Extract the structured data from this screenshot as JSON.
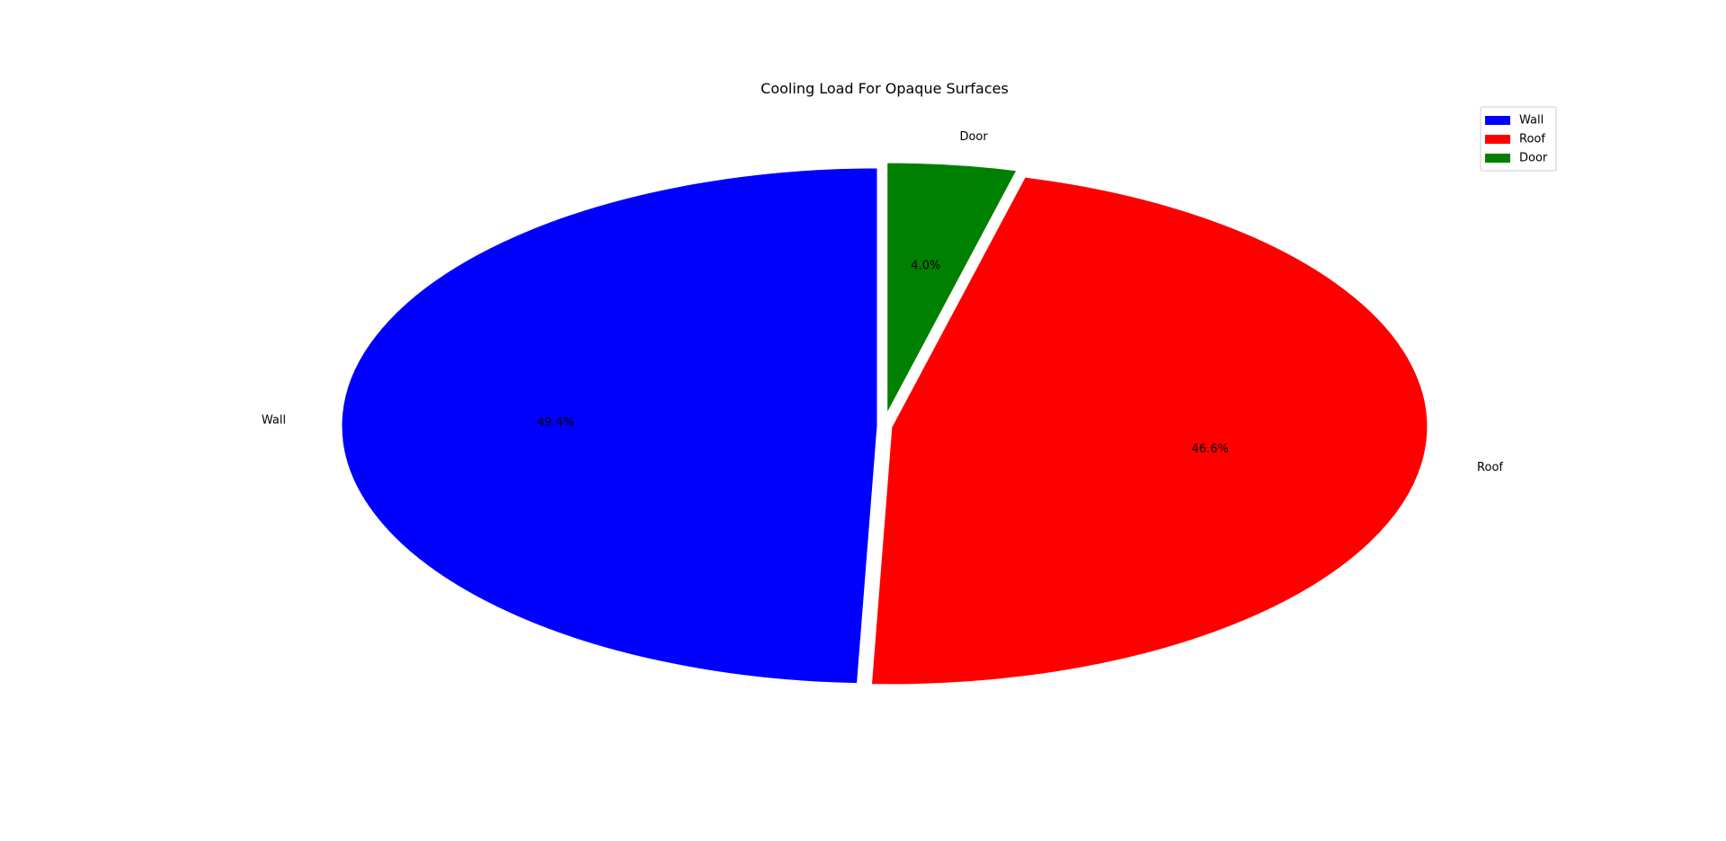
{
  "chart_data": {
    "type": "pie",
    "title": "Cooling  Load For Opaque Surfaces",
    "legend_position": "top-right",
    "start_angle_deg": 90,
    "direction": "counterclockwise",
    "slices": [
      {
        "label": "Wall",
        "value": 49.4,
        "pct_label": "49.4%",
        "color": "#0000ff"
      },
      {
        "label": "Roof",
        "value": 46.6,
        "pct_label": "46.6%",
        "color": "#ff0000"
      },
      {
        "label": "Door",
        "value": 4.0,
        "pct_label": "4.0%",
        "color": "#008000"
      }
    ]
  }
}
